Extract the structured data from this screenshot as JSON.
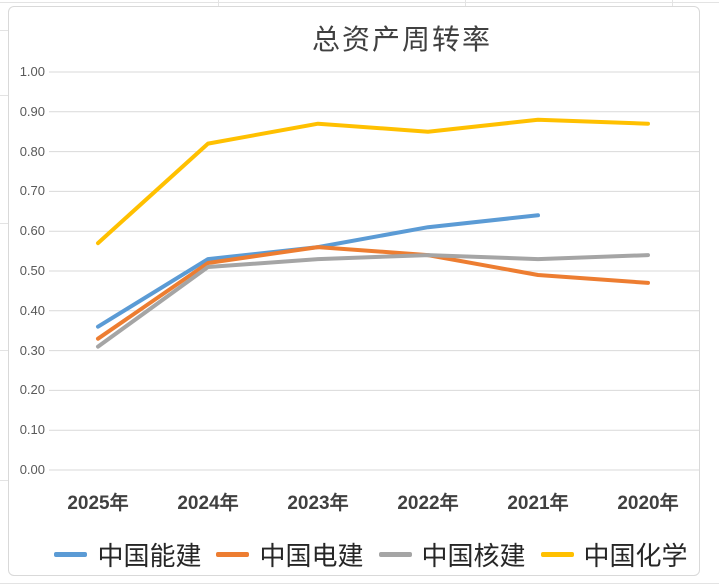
{
  "chart_data": {
    "type": "line",
    "title": "总资产周转率",
    "categories": [
      "2025年",
      "2024年",
      "2023年",
      "2022年",
      "2021年",
      "2020年"
    ],
    "series": [
      {
        "name": "中国能建",
        "color": "#5B9BD5",
        "values": [
          0.36,
          0.53,
          0.56,
          0.61,
          0.64,
          null
        ]
      },
      {
        "name": "中国电建",
        "color": "#ED7D31",
        "values": [
          0.33,
          0.52,
          0.56,
          0.54,
          0.49,
          0.47
        ]
      },
      {
        "name": "中国核建",
        "color": "#A5A5A5",
        "values": [
          0.31,
          0.51,
          0.53,
          0.54,
          0.53,
          0.54
        ]
      },
      {
        "name": "中国化学",
        "color": "#FFC000",
        "values": [
          0.57,
          0.82,
          0.87,
          0.85,
          0.88,
          0.87
        ]
      }
    ],
    "y_ticks": [
      "0.00",
      "0.10",
      "0.20",
      "0.30",
      "0.40",
      "0.50",
      "0.60",
      "0.70",
      "0.80",
      "0.90",
      "1.00"
    ],
    "ylim": [
      0.0,
      1.0
    ],
    "xlabel": "",
    "ylabel": "",
    "grid": true,
    "legend_position": "bottom"
  },
  "colors": {
    "gridline": "#d9d9d9",
    "frame_border": "#d9d9d9",
    "y_tick_text": "#595959",
    "x_label_text": "#404040",
    "title_text": "#404040",
    "legend_text": "#262626",
    "background": "#ffffff"
  }
}
